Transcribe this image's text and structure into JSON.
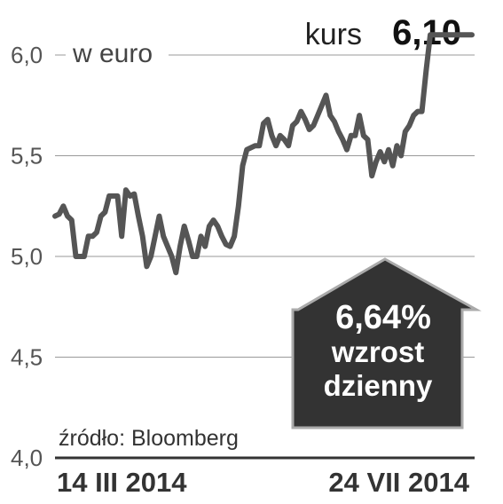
{
  "chart_data": {
    "type": "line",
    "title": "",
    "unit_label": "w euro",
    "ylim": [
      4.0,
      6.0
    ],
    "yticks": [
      "6,0",
      "5,5",
      "5,0",
      "4,5",
      "4,0"
    ],
    "ytick_values": [
      6.0,
      5.5,
      5.0,
      4.5,
      4.0
    ],
    "xlim": [
      0,
      100
    ],
    "x_labels": [
      "14 III 2014",
      "24 VII 2014"
    ],
    "grid": true,
    "source": "źródło: Bloomberg",
    "current": {
      "label": "kurs",
      "value": "6,10"
    },
    "badge": {
      "pct": "6,64",
      "pct_sign": "%",
      "line1": "wzrost",
      "line2": "dzienny"
    },
    "line_color": "#555555",
    "badge_color": "#333333",
    "series": [
      {
        "x": [
          0,
          1,
          2,
          3,
          4,
          5,
          6,
          7,
          8,
          9,
          10,
          11,
          12,
          13,
          14,
          15,
          16,
          17,
          18,
          19,
          20,
          21,
          22,
          23,
          24,
          25,
          26,
          27,
          28,
          29,
          30,
          31,
          32,
          33,
          34,
          35,
          36,
          37,
          38,
          39,
          40,
          41,
          42,
          43,
          44,
          45,
          46,
          47,
          48,
          49,
          50,
          51,
          52,
          53,
          54,
          55,
          56,
          57,
          58,
          59,
          60,
          61,
          62,
          63,
          64,
          65,
          66,
          67,
          68,
          69,
          70,
          71,
          72,
          73,
          74,
          75,
          76,
          77,
          78,
          79,
          80,
          81,
          82,
          83,
          84,
          85,
          86,
          87,
          88,
          89,
          90,
          91,
          92,
          93,
          94,
          95,
          96,
          97,
          98,
          99,
          100
        ],
        "values": [
          5.2,
          5.21,
          5.25,
          5.2,
          5.18,
          5.0,
          5.0,
          5.0,
          5.1,
          5.1,
          5.12,
          5.2,
          5.22,
          5.3,
          5.3,
          5.3,
          5.1,
          5.33,
          5.3,
          5.31,
          5.2,
          5.1,
          4.95,
          5.0,
          5.1,
          5.2,
          5.1,
          5.05,
          5.0,
          4.92,
          5.05,
          5.15,
          5.08,
          5.0,
          5.0,
          5.1,
          5.05,
          5.15,
          5.18,
          5.15,
          5.1,
          5.06,
          5.05,
          5.1,
          5.25,
          5.45,
          5.53,
          5.54,
          5.55,
          5.55,
          5.66,
          5.68,
          5.6,
          5.55,
          5.6,
          5.58,
          5.55,
          5.65,
          5.67,
          5.72,
          5.68,
          5.63,
          5.65,
          5.7,
          5.75,
          5.8,
          5.7,
          5.67,
          5.62,
          5.58,
          5.53,
          5.6,
          5.6,
          5.7,
          5.6,
          5.58,
          5.4,
          5.47,
          5.52,
          5.47,
          5.53,
          5.45,
          5.55,
          5.5,
          5.62,
          5.65,
          5.7,
          5.72,
          5.72,
          5.92,
          6.1,
          6.1,
          6.1,
          6.1,
          6.1,
          6.1,
          6.1,
          6.1,
          6.1,
          6.1,
          6.1
        ]
      }
    ]
  }
}
